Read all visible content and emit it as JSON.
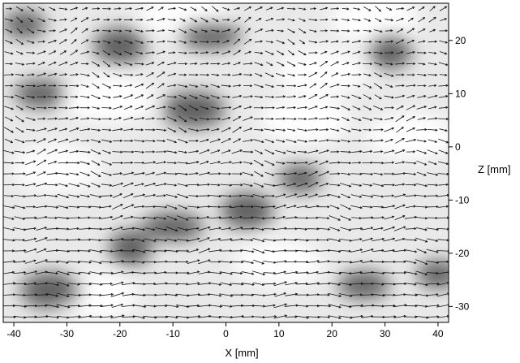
{
  "chart_data": {
    "type": "heatmap",
    "subtype": "vector-field",
    "title": "",
    "xlabel": "X [mm]",
    "ylabel": "Z [mm]",
    "xlim": [
      -42,
      42
    ],
    "ylim": [
      -33,
      27
    ],
    "x_ticks": [
      -40,
      -30,
      -20,
      -10,
      0,
      10,
      20,
      30,
      40
    ],
    "y_ticks": [
      20,
      10,
      0,
      -10,
      -20,
      -30
    ],
    "y_tick_labels": [
      "20",
      "10",
      "0",
      "-10",
      "-20",
      "-30"
    ],
    "background": "grayscale",
    "grid": false,
    "legend": "none",
    "dark_regions": [
      {
        "x": -38,
        "z": 23
      },
      {
        "x": -20,
        "z": 19
      },
      {
        "x": -3,
        "z": 21
      },
      {
        "x": 31,
        "z": 18
      },
      {
        "x": -35,
        "z": 10
      },
      {
        "x": -6,
        "z": 7
      },
      {
        "x": 14,
        "z": -6
      },
      {
        "x": 4,
        "z": -12
      },
      {
        "x": -10,
        "z": -15
      },
      {
        "x": -18,
        "z": -19
      },
      {
        "x": 26,
        "z": -26
      },
      {
        "x": -33,
        "z": -27
      },
      {
        "x": 40,
        "z": -24
      }
    ],
    "arrow_field": {
      "nx": 41,
      "nz": 29,
      "predominant_direction": "+x"
    }
  }
}
